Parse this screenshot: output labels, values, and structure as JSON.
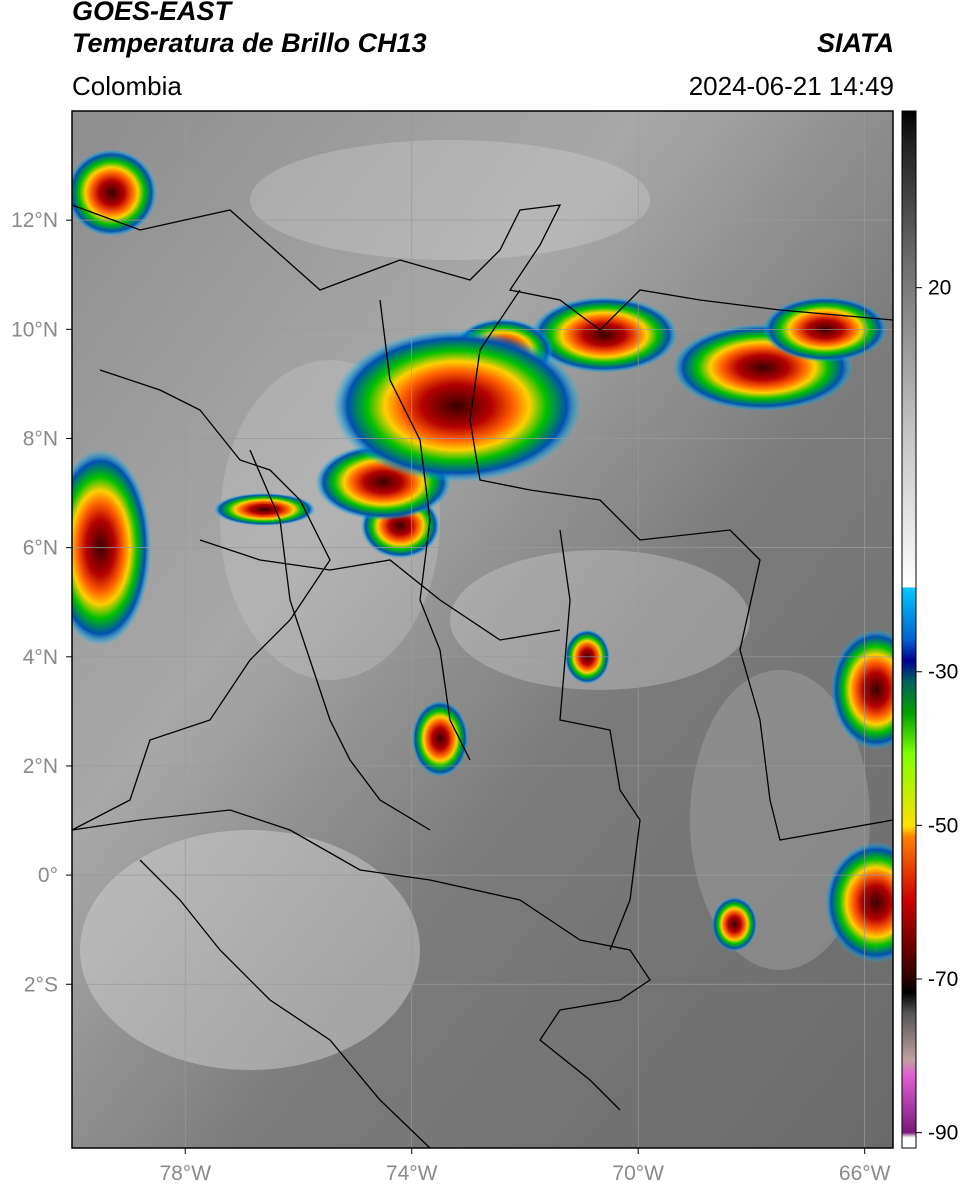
{
  "header": {
    "line1": "GOES-EAST",
    "line2": "Temperatura de Brillo CH13",
    "brand": "SIATA",
    "region": "Colombia",
    "datetime": "2024-06-21 14:49"
  },
  "axes": {
    "lon_range": [
      -80,
      -65.5
    ],
    "lat_range": [
      -5,
      14
    ],
    "lon_ticks": [
      {
        "value": -78,
        "label": "78°W"
      },
      {
        "value": -74,
        "label": "74°W"
      },
      {
        "value": -70,
        "label": "70°W"
      },
      {
        "value": -66,
        "label": "66°W"
      }
    ],
    "lat_ticks": [
      {
        "value": 12,
        "label": "12°N"
      },
      {
        "value": 10,
        "label": "10°N"
      },
      {
        "value": 8,
        "label": "8°N"
      },
      {
        "value": 6,
        "label": "6°N"
      },
      {
        "value": 4,
        "label": "4°N"
      },
      {
        "value": 2,
        "label": "2°N"
      },
      {
        "value": 0,
        "label": "0°"
      },
      {
        "value": -2,
        "label": "2°S"
      }
    ],
    "gridlines": true
  },
  "colorbar": {
    "range": [
      -92,
      43
    ],
    "ticks": [
      {
        "value": 20,
        "label": "20"
      },
      {
        "value": -30,
        "label": "-30"
      },
      {
        "value": -50,
        "label": "-50"
      },
      {
        "value": -70,
        "label": "-70"
      },
      {
        "value": -90,
        "label": "-90"
      }
    ]
  },
  "colors": {
    "cold_tops": "#b40000",
    "deep_convection": "#ffd000",
    "moderate": "#00c000",
    "shallow": "#0050b0",
    "clear": "#707070"
  },
  "storms": [
    {
      "lon": -79.5,
      "lat": 6.0,
      "rx": 0.9,
      "ry": 1.8
    },
    {
      "lon": -79.3,
      "lat": 12.5,
      "rx": 0.8,
      "ry": 0.8
    },
    {
      "lon": -67.8,
      "lat": 9.3,
      "rx": 1.6,
      "ry": 0.8
    },
    {
      "lon": -70.6,
      "lat": 9.9,
      "rx": 1.3,
      "ry": 0.7
    },
    {
      "lon": -72.4,
      "lat": 9.6,
      "rx": 0.9,
      "ry": 0.6
    },
    {
      "lon": -74.2,
      "lat": 6.4,
      "rx": 0.7,
      "ry": 0.6
    },
    {
      "lon": -74.5,
      "lat": 7.2,
      "rx": 1.2,
      "ry": 0.7
    },
    {
      "lon": -73.2,
      "lat": 8.6,
      "rx": 2.2,
      "ry": 1.4
    },
    {
      "lon": -65.8,
      "lat": -0.5,
      "rx": 0.9,
      "ry": 1.1
    },
    {
      "lon": -65.8,
      "lat": 3.4,
      "rx": 0.8,
      "ry": 1.1
    },
    {
      "lon": -73.5,
      "lat": 2.5,
      "rx": 0.5,
      "ry": 0.7
    },
    {
      "lon": -70.9,
      "lat": 4.0,
      "rx": 0.4,
      "ry": 0.5
    },
    {
      "lon": -68.3,
      "lat": -0.9,
      "rx": 0.4,
      "ry": 0.5
    },
    {
      "lon": -76.6,
      "lat": 6.7,
      "rx": 0.9,
      "ry": 0.3
    },
    {
      "lon": -66.7,
      "lat": 10.0,
      "rx": 1.1,
      "ry": 0.6
    }
  ]
}
